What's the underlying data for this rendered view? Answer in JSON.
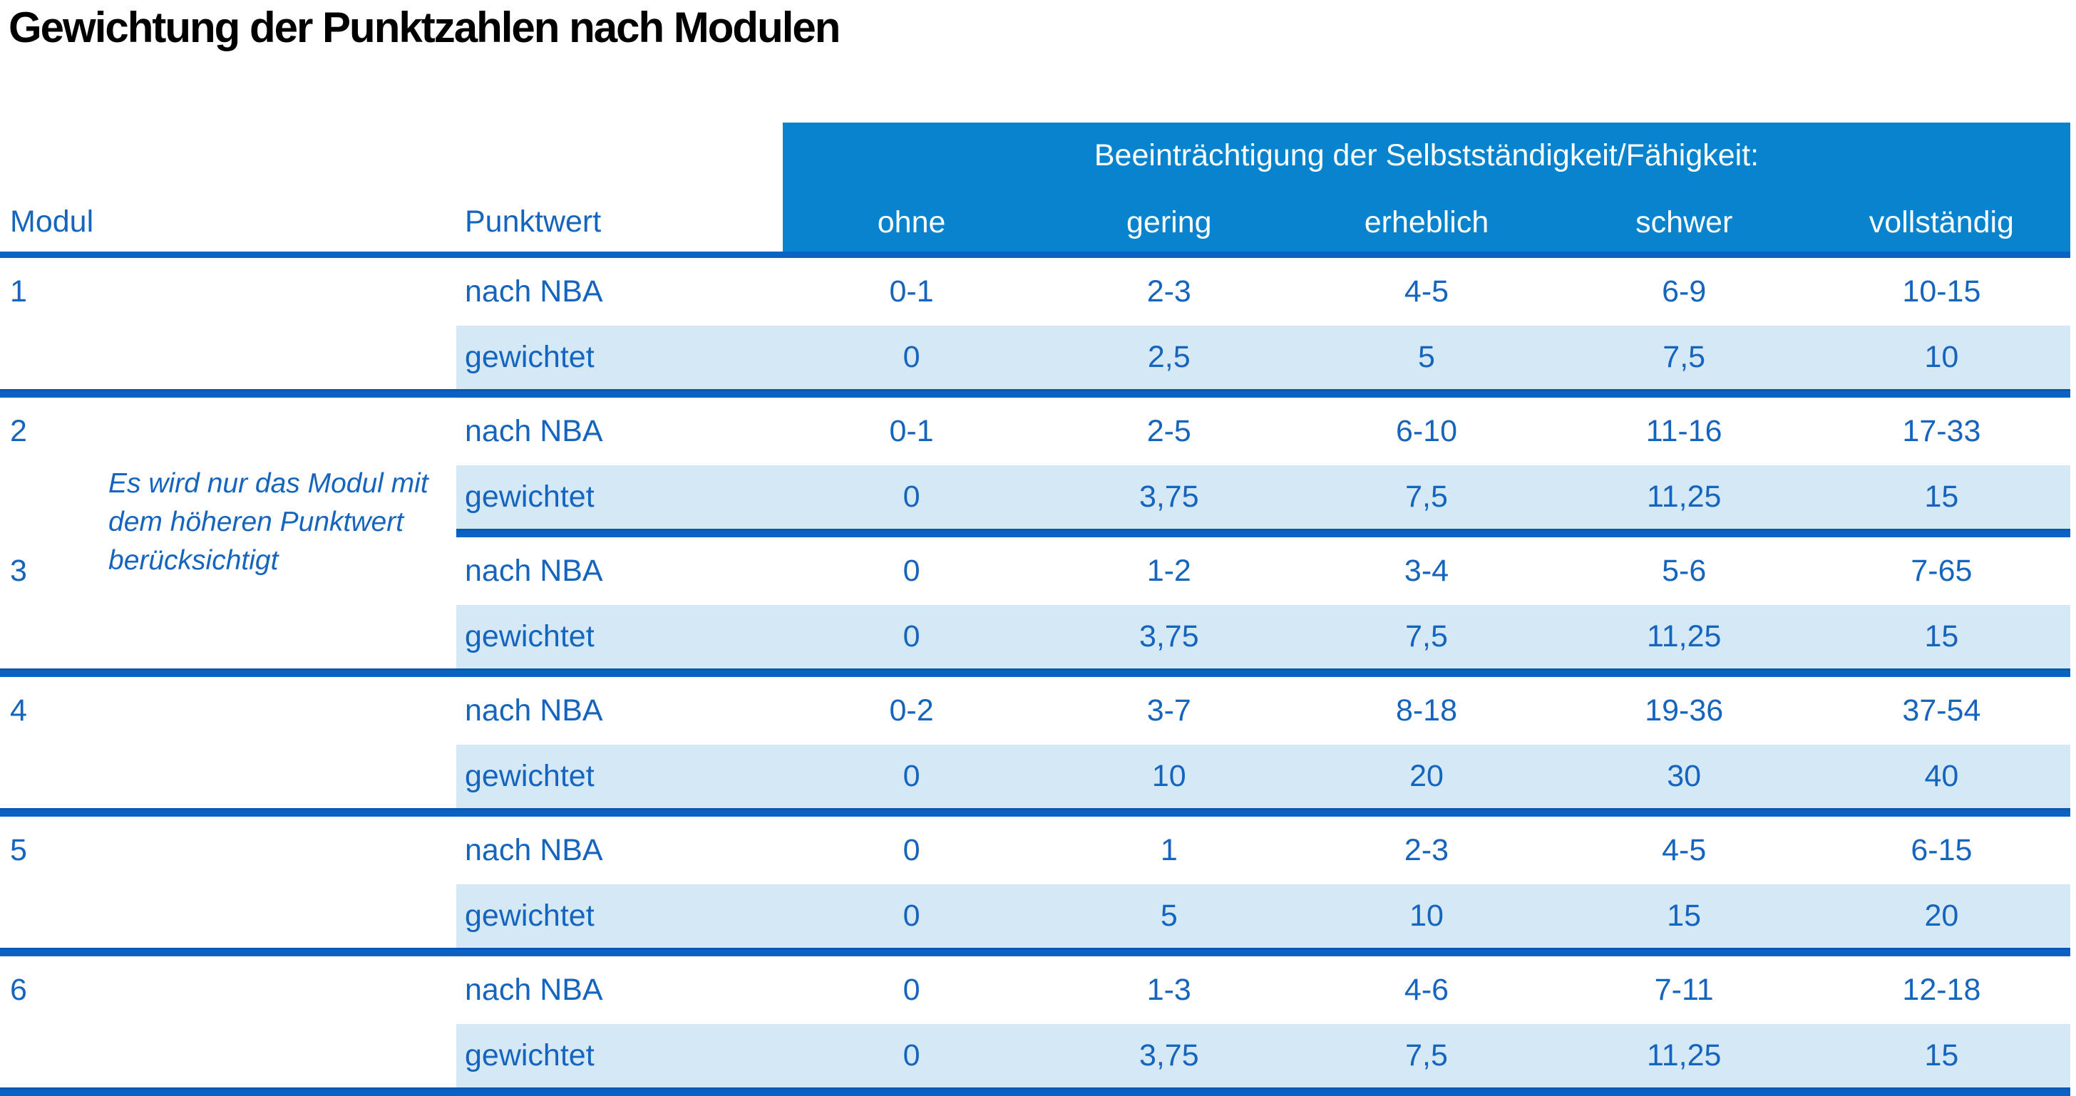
{
  "title": "Gewichtung der Punktzahlen nach Modulen",
  "colors": {
    "header_background": "#0883CE",
    "shaded_row_background": "#D5E8F5",
    "separator_line": "#0A62C4",
    "text_blue": "#1565BE",
    "title_color": "#000000"
  },
  "table": {
    "col_modul": "Modul",
    "col_punktwert": "Punktwert",
    "impairment_header": "Beeinträchtigung der Selbstständigkeit/Fähigkeit:",
    "severity_levels": [
      "ohne",
      "gering",
      "erheblich",
      "schwer",
      "vollständig"
    ],
    "row_labels": {
      "nba": "nach NBA",
      "weighted": "gewichtet"
    },
    "note": "Es wird nur das Modul mit dem höheren Punktwert berücksichtigt",
    "modules": [
      {
        "number": "1",
        "nba": [
          "0-1",
          "2-3",
          "4-5",
          "6-9",
          "10-15"
        ],
        "weighted": [
          "0",
          "2,5",
          "5",
          "7,5",
          "10"
        ],
        "separator": "full"
      },
      {
        "number": "2",
        "nba": [
          "0-1",
          "2-5",
          "6-10",
          "11-16",
          "17-33"
        ],
        "weighted": [
          "0",
          "3,75",
          "7,5",
          "11,25",
          "15"
        ],
        "separator": "partial"
      },
      {
        "number": "3",
        "nba": [
          "0",
          "1-2",
          "3-4",
          "5-6",
          "7-65"
        ],
        "weighted": [
          "0",
          "3,75",
          "7,5",
          "11,25",
          "15"
        ],
        "separator": "full"
      },
      {
        "number": "4",
        "nba": [
          "0-2",
          "3-7",
          "8-18",
          "19-36",
          "37-54"
        ],
        "weighted": [
          "0",
          "10",
          "20",
          "30",
          "40"
        ],
        "separator": "full"
      },
      {
        "number": "5",
        "nba": [
          "0",
          "1",
          "2-3",
          "4-5",
          "6-15"
        ],
        "weighted": [
          "0",
          "5",
          "10",
          "15",
          "20"
        ],
        "separator": "full"
      },
      {
        "number": "6",
        "nba": [
          "0",
          "1-3",
          "4-6",
          "7-11",
          "12-18"
        ],
        "weighted": [
          "0",
          "3,75",
          "7,5",
          "11,25",
          "15"
        ],
        "separator": "full"
      }
    ]
  }
}
